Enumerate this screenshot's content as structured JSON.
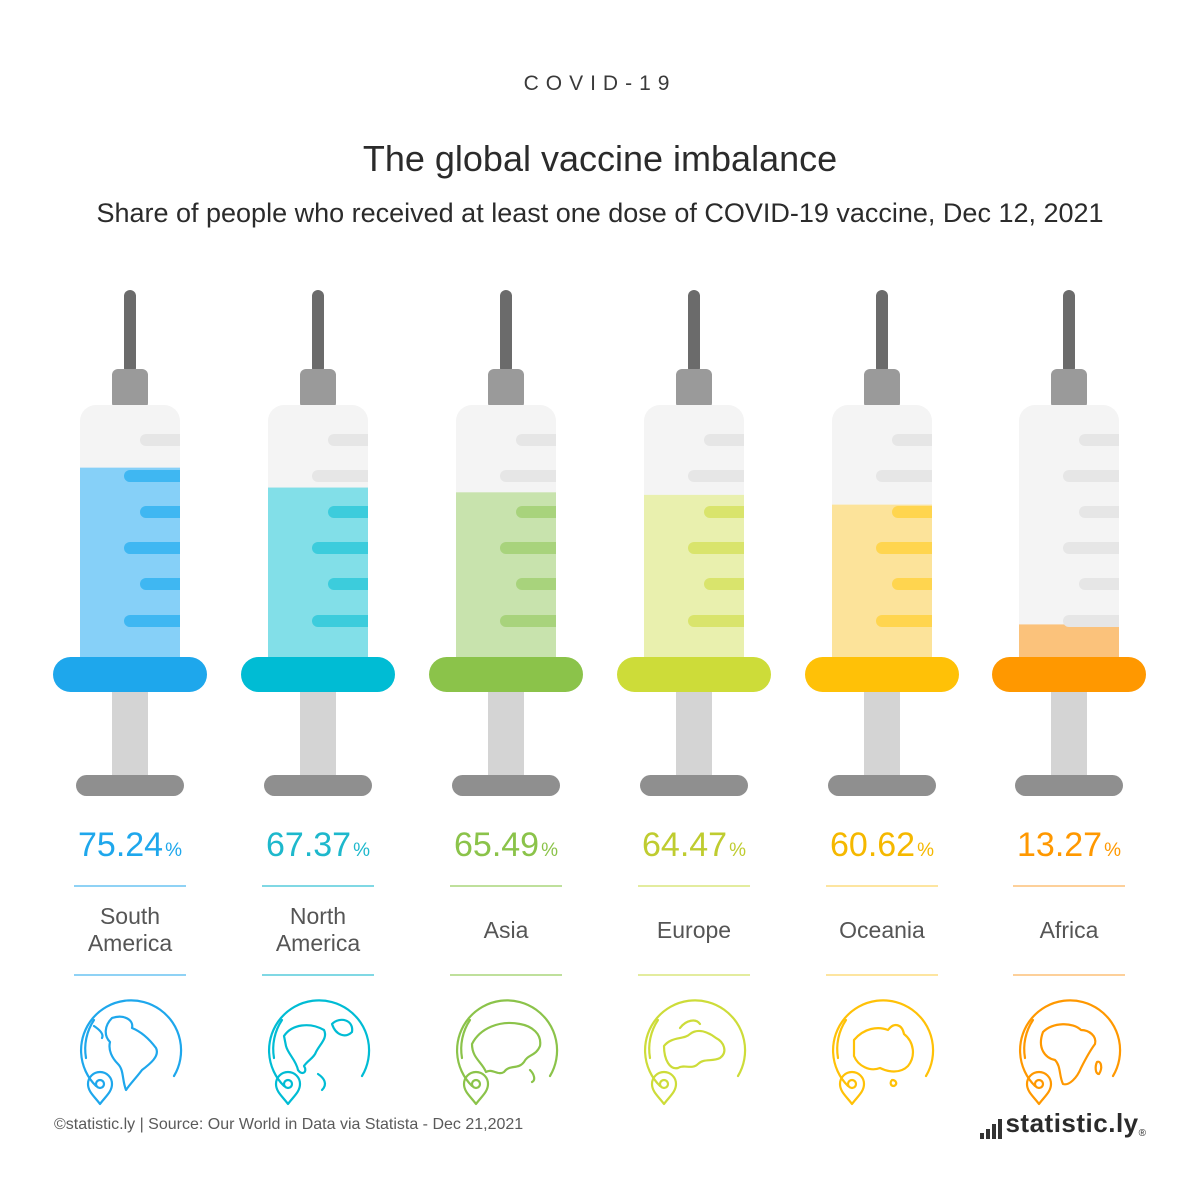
{
  "kicker": "COVID-19",
  "title": "The global vaccine imbalance",
  "subtitle": "Share of people who received at least one dose of COVID-19 vaccine, Dec 12, 2021",
  "footer": {
    "source": "©statistic.ly | Source: Our World in Data via Statista - Dec 21,2021",
    "brand": "statistic.ly",
    "registered": "®"
  },
  "chart_data": {
    "type": "bar",
    "unit": "%",
    "ylim": [
      0,
      100
    ],
    "categories": [
      "South\nAmerica",
      "North\nAmerica",
      "Asia",
      "Europe",
      "Oceania",
      "Africa"
    ],
    "values": [
      75.24,
      67.37,
      65.49,
      64.47,
      60.62,
      13.27
    ],
    "value_labels": [
      "75.24",
      "67.37",
      "65.49",
      "64.47",
      "60.62",
      "13.27"
    ],
    "colors": [
      {
        "main": "#1ea7ec",
        "liquid": "#86d0f8",
        "tick": "#3fb7f2",
        "text": "#1ea7ec",
        "rule": "#8fd2f5"
      },
      {
        "main": "#00bcd4",
        "liquid": "#82dfe8",
        "tick": "#3cccdc",
        "text": "#1eb8cc",
        "rule": "#80d8e4"
      },
      {
        "main": "#8bc34a",
        "liquid": "#c8e3ad",
        "tick": "#a8d37c",
        "text": "#8bc34a",
        "rule": "#bfe09c"
      },
      {
        "main": "#cddc39",
        "liquid": "#e9f0ae",
        "tick": "#d9e46c",
        "text": "#bfcc30",
        "rule": "#e3ec9e"
      },
      {
        "main": "#ffc107",
        "liquid": "#fce39a",
        "tick": "#ffd54f",
        "text": "#f5b800",
        "rule": "#fde5a0"
      },
      {
        "main": "#ff9800",
        "liquid": "#fbc27b",
        "tick": "#fbb24e",
        "text": "#ff9800",
        "rule": "#fdd09a"
      }
    ],
    "icons": [
      "globe-south-america-icon",
      "globe-north-america-icon",
      "globe-asia-icon",
      "globe-europe-icon",
      "globe-oceania-icon",
      "globe-africa-icon"
    ]
  }
}
